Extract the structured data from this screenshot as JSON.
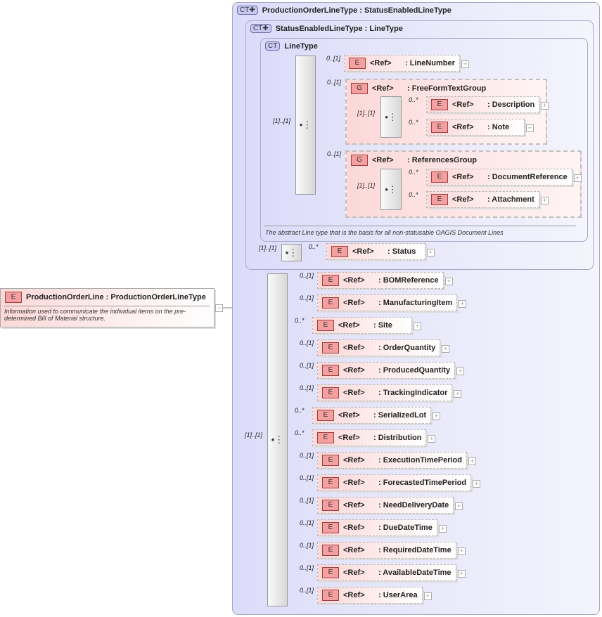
{
  "root_element": {
    "badge": "E",
    "name": "ProductionOrderLine",
    "type": "ProductionOrderLineType",
    "doc": "Information used to communicate the individual items on the pre-determined Bill of Material structure."
  },
  "containers": [
    {
      "badge": "CT✚",
      "title": "ProductionOrderLineType : StatusEnabledLineType"
    },
    {
      "badge": "CT✚",
      "title": "StatusEnabledLineType : LineType"
    },
    {
      "badge": "CT",
      "title": "LineType",
      "doc": "The abstract Line type that is the basis for all non-statusable OAGIS Document Lines"
    }
  ],
  "ref_label": "<Ref>",
  "sequence_cardinality": "[1]..[1]",
  "line_type_items": [
    {
      "kind": "E",
      "name": ": LineNumber",
      "card": "0..[1]"
    },
    {
      "kind": "G",
      "name": ": FreeFormTextGroup",
      "card": "0..[1]",
      "children": [
        {
          "kind": "E",
          "name": ": Description",
          "card": "0..*"
        },
        {
          "kind": "E",
          "name": ": Note",
          "card": "0..*"
        }
      ]
    },
    {
      "kind": "G",
      "name": ": ReferencesGroup",
      "card": "0..[1]",
      "children": [
        {
          "kind": "E",
          "name": ": DocumentReference",
          "card": "0..*"
        },
        {
          "kind": "E",
          "name": ": Attachment",
          "card": "0..*"
        }
      ]
    }
  ],
  "status_item": {
    "kind": "E",
    "name": ": Status",
    "card": "0..*"
  },
  "production_items": [
    {
      "name": ": BOMReference",
      "card": "0..[1]"
    },
    {
      "name": ": ManufacturingItem",
      "card": "0..[1]"
    },
    {
      "name": ": Site",
      "card": "0..*"
    },
    {
      "name": ": OrderQuantity",
      "card": "0..[1]"
    },
    {
      "name": ": ProducedQuantity",
      "card": "0..[1]"
    },
    {
      "name": ": TrackingIndicator",
      "card": "0..[1]"
    },
    {
      "name": ": SerializedLot",
      "card": "0..*"
    },
    {
      "name": ": Distribution",
      "card": "0..*"
    },
    {
      "name": ": ExecutionTimePeriod",
      "card": "0..[1]"
    },
    {
      "name": ": ForecastedTimePeriod",
      "card": "0..[1]"
    },
    {
      "name": ": NeedDeliveryDate",
      "card": "0..[1]"
    },
    {
      "name": ": DueDateTime",
      "card": "0..[1]"
    },
    {
      "name": ": RequiredDateTime",
      "card": "0..[1]"
    },
    {
      "name": ": AvailableDateTime",
      "card": "0..[1]"
    },
    {
      "name": ": UserArea",
      "card": "0..[1]"
    }
  ]
}
